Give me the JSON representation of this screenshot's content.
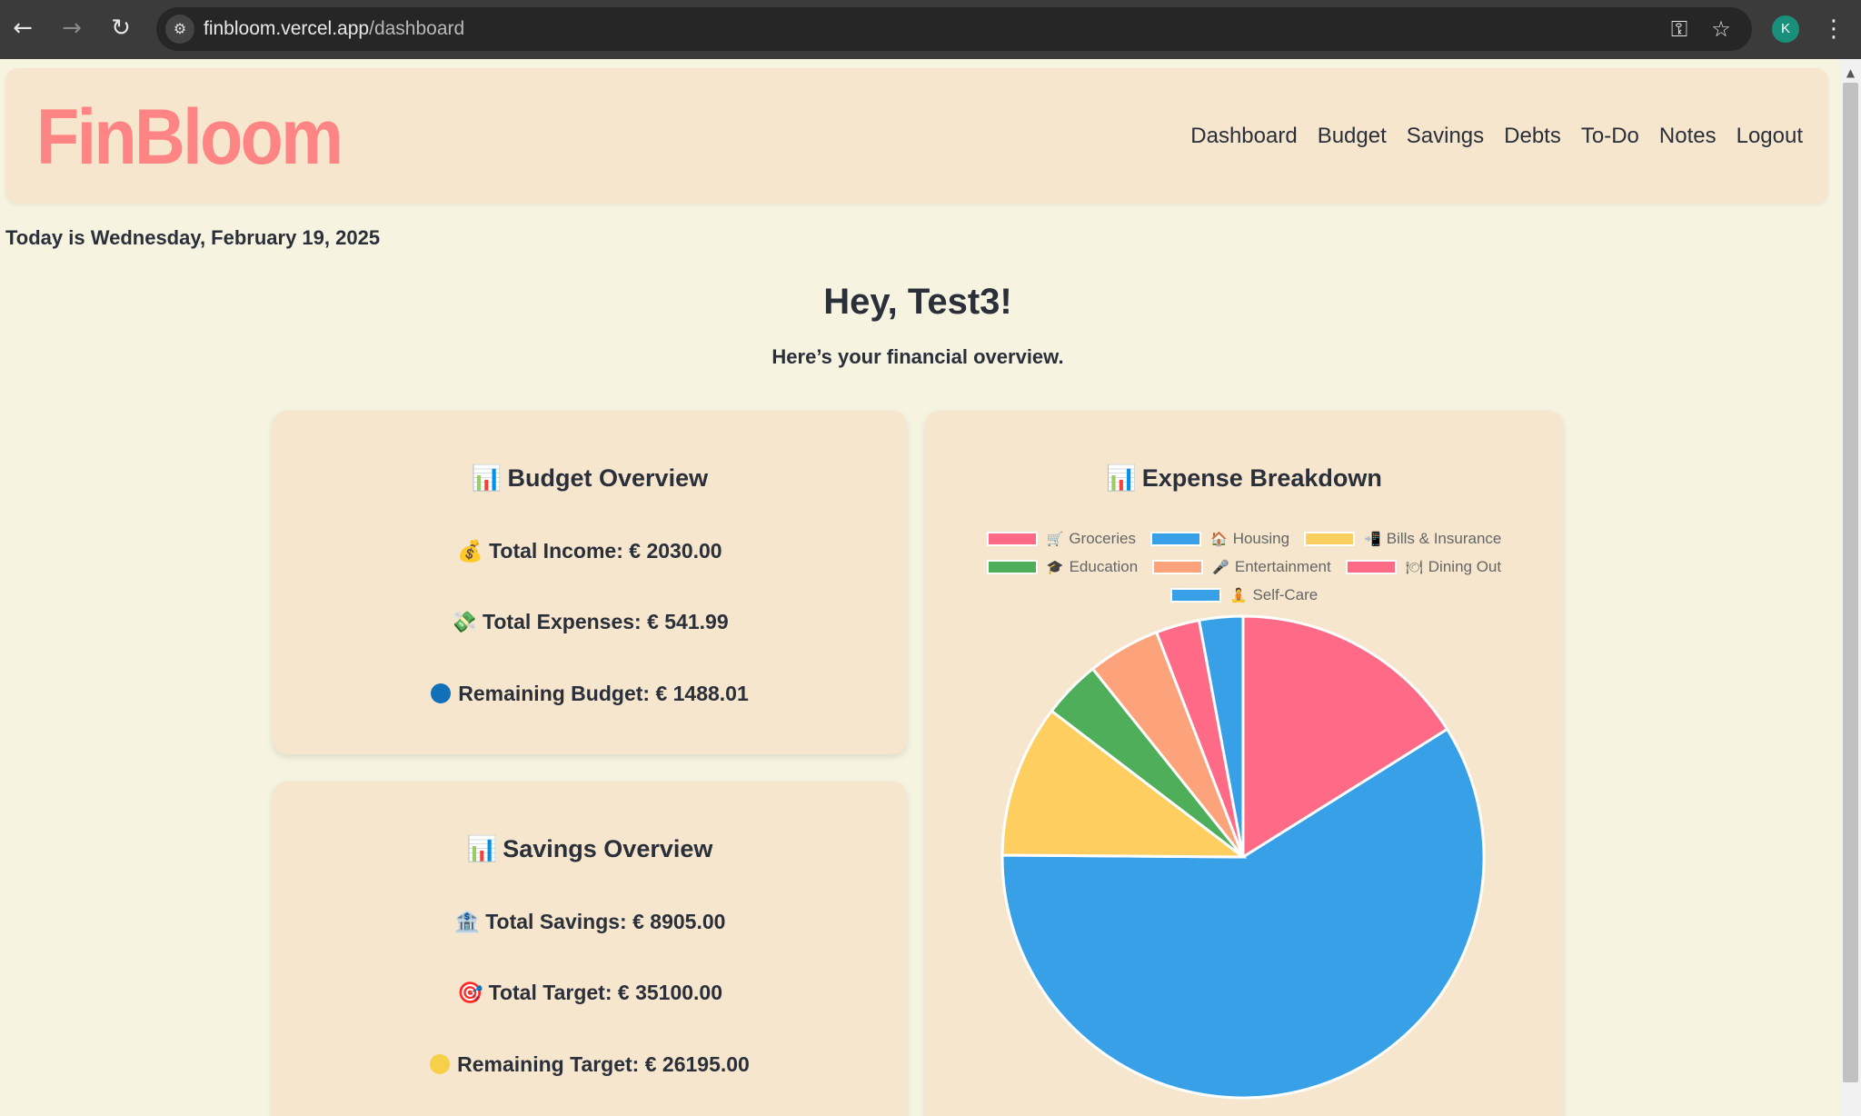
{
  "browser": {
    "url_host": "finbloom.vercel.app",
    "url_path": "/dashboard",
    "profile_initial": "K",
    "icons": [
      "back-icon",
      "forward-icon",
      "reload-icon",
      "site-info-icon",
      "key-icon",
      "star-icon",
      "menu-dots-icon"
    ]
  },
  "header": {
    "logo": "FinBloom",
    "nav": [
      "Dashboard",
      "Budget",
      "Savings",
      "Debts",
      "To-Do",
      "Notes",
      "Logout"
    ]
  },
  "today": "Today is Wednesday, February 19, 2025",
  "greeting": "Hey, Test3!",
  "subtitle": "Here’s your financial overview.",
  "budget": {
    "title": "Budget Overview",
    "income": "Total Income: € 2030.00",
    "expenses": "Total Expenses: € 541.99",
    "remaining": "Remaining Budget: € 1488.01"
  },
  "savings": {
    "title": "Savings Overview",
    "total": "Total Savings: € 8905.00",
    "target": "Total Target: € 35100.00",
    "remaining": "Remaining Target: € 26195.00"
  },
  "colors": {
    "accent_logo": "#ff8585",
    "card_bg": "#f5e6cd",
    "page_bg": "#f6f3e1",
    "remaining_budget_dot": "#1170b8",
    "remaining_target_dot": "#f7d04a"
  },
  "chart_data": {
    "type": "pie",
    "title": "Expense Breakdown",
    "categories": [
      "Groceries",
      "Housing",
      "Bills & Insurance",
      "Education",
      "Entertainment",
      "Dining Out",
      "Self-Care"
    ],
    "legend_icons": [
      "🛒",
      "🏠",
      "📲",
      "🎓",
      "🎤",
      "🍽",
      "🧘"
    ],
    "values": [
      16.5,
      60.5,
      10.5,
      4.0,
      5.0,
      3.0,
      3.0
    ],
    "colors": [
      "#ff6b86",
      "#38a0e6",
      "#fecf60",
      "#4fae5a",
      "#fda37b",
      "#ff6b86",
      "#38a0e6"
    ],
    "legend_position": "top"
  }
}
